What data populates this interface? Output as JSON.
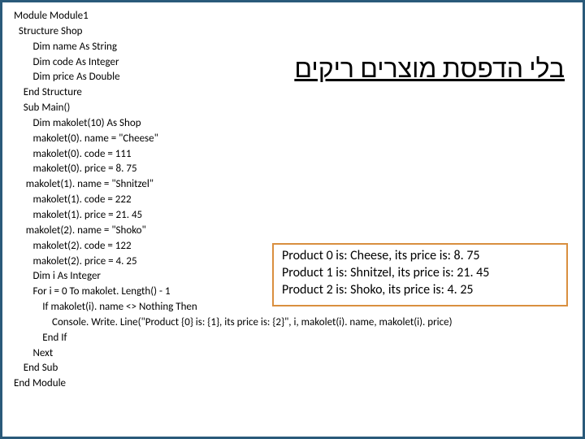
{
  "colors": {
    "slide_border": "#2a5a7a",
    "output_border": "#d98f3f",
    "text": "#000000",
    "background": "#ffffff"
  },
  "typography": {
    "code_fontsize": 13,
    "title_fontsize": 32,
    "output_fontsize": 16,
    "font_family": "Calibri, Arial, sans-serif"
  },
  "title_hebrew": "בלי הדפסת מוצרים ריקים",
  "code": "Module Module1\n  Structure Shop\n        Dim name As String\n        Dim code As Integer\n        Dim price As Double\n    End Structure\n    Sub Main()\n        Dim makolet(10) As Shop\n        makolet(0). name = \"Cheese\"\n        makolet(0). code = 111\n        makolet(0). price = 8. 75\n     makolet(1). name = \"Shnitzel\"\n        makolet(1). code = 222\n        makolet(1). price = 21. 45\n     makolet(2). name = \"Shoko\"\n        makolet(2). code = 122\n        makolet(2). price = 4. 25\n        Dim i As Integer\n        For i = 0 To makolet. Length() - 1\n            If makolet(i). name <> Nothing Then\n                Console. Write. Line(\"Product {0} is: {1}, its price is: {2}\", i, makolet(i). name, makolet(i). price)\n            End If\n        Next\n    End Sub\nEnd Module",
  "output": {
    "lines": [
      "Product 0 is: Cheese, its price is: 8. 75",
      "Product 1 is: Shnitzel, its price is: 21. 45",
      "Product 2 is: Shoko, its price is: 4. 25"
    ]
  }
}
